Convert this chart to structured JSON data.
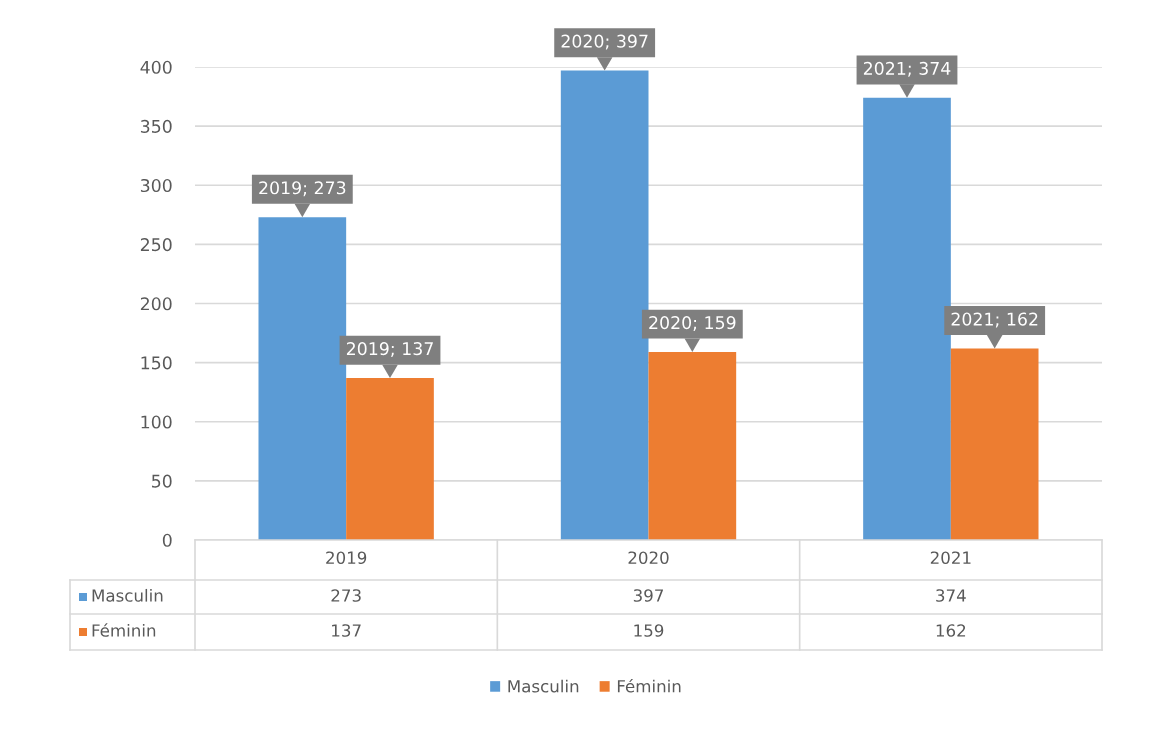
{
  "chart_data": {
    "type": "bar",
    "categories": [
      "2019",
      "2020",
      "2021"
    ],
    "series": [
      {
        "name": "Masculin",
        "color": "#5b9bd5",
        "values": [
          273,
          397,
          374
        ]
      },
      {
        "name": "Féminin",
        "color": "#ed7d31",
        "values": [
          137,
          159,
          162
        ]
      }
    ],
    "annotations": [
      {
        "text": "2019; 273",
        "x": "2019",
        "y": 273
      },
      {
        "text": "2020; 397",
        "x": "2020",
        "y": 397
      },
      {
        "text": "2021; 374",
        "x": "2021",
        "y": 374
      },
      {
        "text": "2019; 137",
        "x": "2019",
        "y": 137
      },
      {
        "text": "2020; 159",
        "x": "2020",
        "y": 159
      },
      {
        "text": "2021; 162",
        "x": "2021",
        "y": 162
      }
    ],
    "ylim": [
      0,
      400
    ],
    "yticks": [
      0,
      50,
      100,
      150,
      200,
      250,
      300,
      350,
      400
    ],
    "grid": "y",
    "legend": "bottom",
    "data_labels": true
  }
}
